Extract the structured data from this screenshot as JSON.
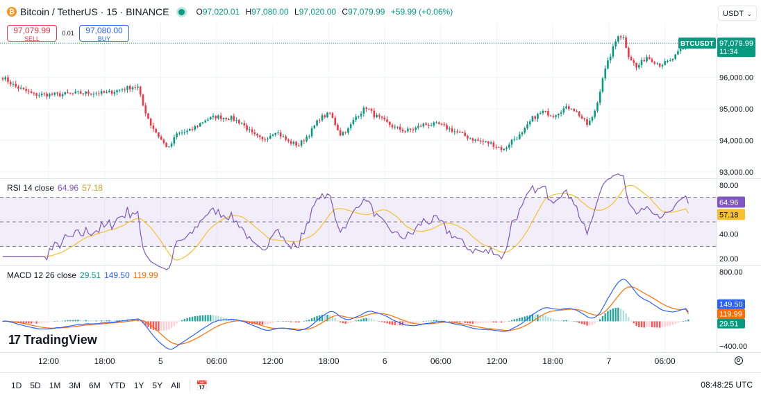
{
  "header": {
    "coin_glyph": "₿",
    "title": "Bitcoin / TetherUS · 15 · BINANCE",
    "ohlc": [
      {
        "key": "O",
        "value": "97,020.01"
      },
      {
        "key": "H",
        "value": "97,080.00"
      },
      {
        "key": "L",
        "value": "97,020.00"
      },
      {
        "key": "C",
        "value": "97,079.99"
      }
    ],
    "change": "+59.99 (+0.06%)",
    "currency": "USDT"
  },
  "trade": {
    "sell_price": "97,079.99",
    "sell_label": "SELL",
    "spread": "0.01",
    "buy_price": "97,080.00",
    "buy_label": "BUY"
  },
  "price_tag": {
    "symbol": "BTCUSDT",
    "price": "97,079.99",
    "countdown": "11:34",
    "color": "#089981"
  },
  "colors": {
    "up": "#089981",
    "down": "#f23645",
    "rsi": "#7e57c2",
    "rsi_ma": "#f7c02e",
    "macd": "#2962ff",
    "signal": "#ff6d00",
    "grid": "#f0f3fa"
  },
  "rsi_legend": {
    "name": "RSI 14 close",
    "rsi": "64.96",
    "ma": "57.18"
  },
  "macd_legend": {
    "name": "MACD 12 26 close",
    "hist": "29.51",
    "macd": "149.50",
    "signal": "119.99"
  },
  "logo": {
    "mark": "17",
    "text": "TradingView"
  },
  "bottom": {
    "ranges": [
      "1D",
      "5D",
      "1M",
      "3M",
      "6M",
      "YTD",
      "1Y",
      "5Y",
      "All"
    ],
    "calendar_icon": "calendar-icon",
    "clock": "08:48:25 UTC"
  },
  "chart_data": [
    {
      "type": "candlestick",
      "title": "Bitcoin / TetherUS · 15 · BINANCE",
      "ylim": [
        92800,
        97700
      ],
      "yticks": [
        "96,000.00",
        "95,000.00",
        "94,000.00",
        "93,000.00"
      ],
      "ytick_values": [
        96000,
        95000,
        94000,
        93000
      ],
      "xticks": [
        "12:00",
        "18:00",
        "5",
        "06:00",
        "12:00",
        "18:00",
        "6",
        "06:00",
        "12:00",
        "18:00",
        "7",
        "06:00"
      ],
      "anchors": [
        [
          0,
          96000
        ],
        [
          5,
          95700
        ],
        [
          12,
          95450
        ],
        [
          22,
          95450
        ],
        [
          30,
          95500
        ],
        [
          40,
          95500
        ],
        [
          50,
          95700
        ],
        [
          52,
          95680
        ],
        [
          54,
          95100
        ],
        [
          57,
          94500
        ],
        [
          62,
          93900
        ],
        [
          64,
          93750
        ],
        [
          67,
          94200
        ],
        [
          72,
          94300
        ],
        [
          78,
          94650
        ],
        [
          82,
          94750
        ],
        [
          88,
          94700
        ],
        [
          92,
          94550
        ],
        [
          96,
          94200
        ],
        [
          100,
          94000
        ],
        [
          105,
          94300
        ],
        [
          110,
          93950
        ],
        [
          114,
          93850
        ],
        [
          118,
          94200
        ],
        [
          122,
          94700
        ],
        [
          126,
          94850
        ],
        [
          130,
          94200
        ],
        [
          133,
          94350
        ],
        [
          136,
          94750
        ],
        [
          140,
          95050
        ],
        [
          143,
          94800
        ],
        [
          147,
          94600
        ],
        [
          151,
          94400
        ],
        [
          155,
          94300
        ],
        [
          158,
          94350
        ],
        [
          162,
          94500
        ],
        [
          168,
          94500
        ],
        [
          175,
          94250
        ],
        [
          182,
          94000
        ],
        [
          188,
          93900
        ],
        [
          193,
          93700
        ],
        [
          196,
          94000
        ],
        [
          200,
          94200
        ],
        [
          204,
          94700
        ],
        [
          208,
          94900
        ],
        [
          212,
          94800
        ],
        [
          216,
          95000
        ],
        [
          219,
          95050
        ],
        [
          222,
          94800
        ],
        [
          225,
          94500
        ],
        [
          227,
          94700
        ],
        [
          229,
          95200
        ],
        [
          231,
          96000
        ],
        [
          234,
          96700
        ],
        [
          237,
          97350
        ],
        [
          239,
          97250
        ],
        [
          241,
          96700
        ],
        [
          244,
          96300
        ],
        [
          248,
          96650
        ],
        [
          253,
          96400
        ],
        [
          257,
          96500
        ],
        [
          261,
          96850
        ],
        [
          264,
          97080
        ]
      ],
      "last_close": 97079.99
    },
    {
      "type": "line",
      "title": "RSI 14 close",
      "ylim": [
        15,
        85
      ],
      "yticks": [
        "80.00",
        "40.00",
        "20.00"
      ],
      "ytick_values": [
        80,
        40,
        20
      ],
      "bands": [
        70,
        50,
        30
      ],
      "series": [
        {
          "name": "RSI",
          "last": 64.96
        },
        {
          "name": "MA",
          "last": 57.18
        }
      ]
    },
    {
      "type": "line",
      "title": "MACD 12 26 close",
      "ylim": [
        -500,
        900
      ],
      "yticks": [
        "800.00",
        "−400.00"
      ],
      "ytick_values": [
        800,
        -400
      ],
      "series": [
        {
          "name": "MACD",
          "last": 149.5
        },
        {
          "name": "Signal",
          "last": 119.99
        },
        {
          "name": "Histogram",
          "last": 29.51
        }
      ]
    }
  ]
}
